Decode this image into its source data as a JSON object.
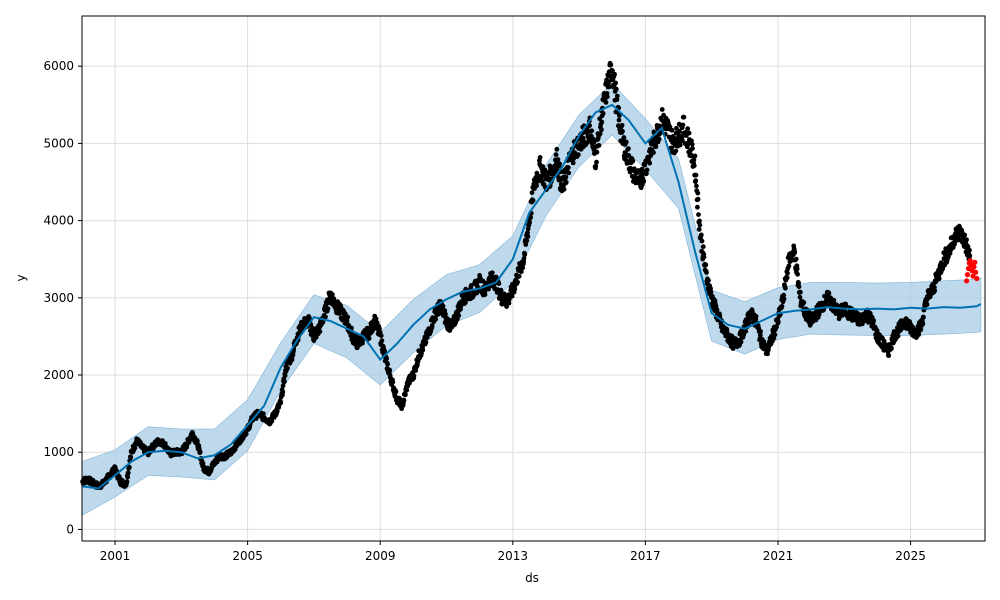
{
  "chart_data": {
    "type": "line",
    "title": "",
    "xlabel": "ds",
    "ylabel": "y",
    "x_ticks": [
      "2001",
      "2005",
      "2009",
      "2013",
      "2017",
      "2021",
      "2025"
    ],
    "y_ticks": [
      "0",
      "1000",
      "2000",
      "3000",
      "4000",
      "5000",
      "6000"
    ],
    "xlim": [
      "2000-01-03",
      "2027-04-01"
    ],
    "ylim": [
      -150,
      6650
    ],
    "grid": true,
    "legend": "none",
    "colors": {
      "observed": "#000000",
      "forecast": "#0072B2",
      "uncertainty": "#a8cce6",
      "recent": "#ff0000"
    },
    "series": [
      {
        "name": "",
        "role": "forecast-trend",
        "x": [
          "2000-01-01",
          "2000-07-01",
          "2001-01-01",
          "2001-07-01",
          "2002-01-01",
          "2002-07-01",
          "2003-01-01",
          "2003-07-01",
          "2004-01-01",
          "2004-07-01",
          "2005-01-01",
          "2005-07-01",
          "2006-01-01",
          "2006-07-01",
          "2007-01-01",
          "2007-07-01",
          "2008-01-01",
          "2008-07-01",
          "2009-01-01",
          "2009-07-01",
          "2010-01-01",
          "2010-07-01",
          "2011-01-01",
          "2011-07-01",
          "2012-01-01",
          "2012-07-01",
          "2013-01-01",
          "2013-07-01",
          "2014-01-01",
          "2014-07-01",
          "2015-01-01",
          "2015-07-01",
          "2016-01-01",
          "2016-07-01",
          "2017-01-01",
          "2017-07-01",
          "2018-01-01",
          "2018-07-01",
          "2019-01-01",
          "2019-07-01",
          "2020-01-01",
          "2020-07-01",
          "2021-01-01",
          "2021-07-01",
          "2022-01-01",
          "2022-07-01",
          "2023-01-01",
          "2023-07-01",
          "2024-01-01",
          "2024-07-01",
          "2025-01-01",
          "2025-07-01",
          "2026-01-01",
          "2026-07-01",
          "2027-01-01",
          "2027-02-15"
        ],
        "y": [
          560,
          530,
          700,
          880,
          1000,
          1020,
          1000,
          920,
          960,
          1100,
          1350,
          1600,
          2100,
          2450,
          2750,
          2700,
          2600,
          2500,
          2200,
          2400,
          2650,
          2850,
          2980,
          3080,
          3120,
          3200,
          3500,
          4100,
          4400,
          4700,
          5100,
          5400,
          5500,
          5300,
          5000,
          5200,
          4500,
          3600,
          2800,
          2650,
          2600,
          2700,
          2800,
          2830,
          2850,
          2880,
          2860,
          2850,
          2860,
          2850,
          2870,
          2860,
          2880,
          2870,
          2890,
          2920
        ]
      },
      {
        "name": "",
        "role": "uncertainty-upper",
        "x": [
          "2000-01-01",
          "2001-01-01",
          "2002-01-01",
          "2003-01-01",
          "2004-01-01",
          "2005-01-01",
          "2006-01-01",
          "2007-01-01",
          "2008-01-01",
          "2009-01-01",
          "2010-01-01",
          "2011-01-01",
          "2012-01-01",
          "2013-01-01",
          "2014-01-01",
          "2015-01-01",
          "2016-01-01",
          "2017-01-01",
          "2018-01-01",
          "2019-01-01",
          "2020-01-01",
          "2021-01-01",
          "2022-01-01",
          "2023-01-01",
          "2024-01-01",
          "2025-01-01",
          "2026-01-01",
          "2027-01-01",
          "2027-02-15"
        ],
        "y": [
          880,
          1030,
          1330,
          1300,
          1300,
          1680,
          2420,
          3040,
          2900,
          2550,
          2980,
          3300,
          3430,
          3800,
          4720,
          5370,
          5780,
          5320,
          4800,
          3100,
          2950,
          3130,
          3200,
          3200,
          3190,
          3200,
          3220,
          3240,
          3260
        ]
      },
      {
        "name": "",
        "role": "uncertainty-lower",
        "x": [
          "2000-01-01",
          "2001-01-01",
          "2002-01-01",
          "2003-01-01",
          "2004-01-01",
          "2005-01-01",
          "2006-01-01",
          "2007-01-01",
          "2008-01-01",
          "2009-01-01",
          "2010-01-01",
          "2011-01-01",
          "2012-01-01",
          "2013-01-01",
          "2014-01-01",
          "2015-01-01",
          "2016-01-01",
          "2017-01-01",
          "2018-01-01",
          "2019-01-01",
          "2020-01-01",
          "2021-01-01",
          "2022-01-01",
          "2023-01-01",
          "2024-01-01",
          "2025-01-01",
          "2026-01-01",
          "2027-01-01",
          "2027-02-15"
        ],
        "y": [
          180,
          420,
          700,
          680,
          640,
          1020,
          1800,
          2410,
          2220,
          1870,
          2290,
          2640,
          2810,
          3200,
          4060,
          4700,
          5110,
          4660,
          4160,
          2440,
          2270,
          2460,
          2530,
          2520,
          2510,
          2510,
          2530,
          2550,
          2560
        ]
      },
      {
        "name": "",
        "role": "observed",
        "x": [
          "2000-01-10",
          "2000-03-01",
          "2000-05-01",
          "2000-07-01",
          "2000-09-01",
          "2000-11-01",
          "2001-01-01",
          "2001-03-01",
          "2001-05-01",
          "2001-07-01",
          "2001-09-01",
          "2001-11-01",
          "2002-01-01",
          "2002-03-01",
          "2002-05-01",
          "2002-07-01",
          "2002-09-01",
          "2002-11-01",
          "2003-01-01",
          "2003-03-01",
          "2003-05-01",
          "2003-07-01",
          "2003-09-01",
          "2003-11-01",
          "2004-01-01",
          "2004-03-01",
          "2004-05-01",
          "2004-07-01",
          "2004-09-01",
          "2004-11-01",
          "2005-01-01",
          "2005-03-01",
          "2005-05-01",
          "2005-07-01",
          "2005-09-01",
          "2005-11-01",
          "2006-01-01",
          "2006-03-01",
          "2006-05-01",
          "2006-07-01",
          "2006-09-01",
          "2006-11-01",
          "2007-01-01",
          "2007-03-01",
          "2007-05-01",
          "2007-07-01",
          "2007-09-01",
          "2007-11-01",
          "2008-01-01",
          "2008-03-01",
          "2008-05-01",
          "2008-07-01",
          "2008-09-01",
          "2008-11-01",
          "2009-01-01",
          "2009-03-01",
          "2009-05-01",
          "2009-07-01",
          "2009-09-01",
          "2009-11-01",
          "2010-01-01",
          "2010-03-01",
          "2010-05-01",
          "2010-07-01",
          "2010-09-01",
          "2010-11-01",
          "2011-01-01",
          "2011-03-01",
          "2011-05-01",
          "2011-07-01",
          "2011-09-01",
          "2011-11-01",
          "2012-01-01",
          "2012-03-01",
          "2012-05-01",
          "2012-07-01",
          "2012-09-01",
          "2012-11-01",
          "2013-01-01",
          "2013-03-01",
          "2013-05-01",
          "2013-07-01",
          "2013-09-01",
          "2013-11-01",
          "2014-01-01",
          "2014-03-01",
          "2014-05-01",
          "2014-07-01",
          "2014-09-01",
          "2014-11-01",
          "2015-01-01",
          "2015-03-01",
          "2015-05-01",
          "2015-07-01",
          "2015-09-01",
          "2015-11-01",
          "2016-01-01",
          "2016-03-01",
          "2016-05-01",
          "2016-07-01",
          "2016-09-01",
          "2016-11-01",
          "2017-01-01",
          "2017-03-01",
          "2017-05-01",
          "2017-07-01",
          "2017-09-01",
          "2017-11-01",
          "2018-01-01",
          "2018-03-01",
          "2018-05-01",
          "2018-07-01",
          "2018-09-01",
          "2018-11-01",
          "2019-01-01",
          "2019-03-01",
          "2019-05-01",
          "2019-07-01",
          "2019-09-01",
          "2019-11-01",
          "2020-01-01",
          "2020-03-01",
          "2020-05-01",
          "2020-07-01",
          "2020-09-01",
          "2020-11-01",
          "2021-01-01",
          "2021-03-01",
          "2021-05-01",
          "2021-07-01",
          "2021-09-01",
          "2021-11-01",
          "2022-01-01",
          "2022-03-01",
          "2022-05-01",
          "2022-07-01",
          "2022-09-01",
          "2022-11-01",
          "2023-01-01",
          "2023-03-01",
          "2023-05-01",
          "2023-07-01",
          "2023-09-01",
          "2023-11-01",
          "2024-01-01",
          "2024-03-01",
          "2024-05-01",
          "2024-07-01",
          "2024-09-01",
          "2024-11-01",
          "2025-01-01",
          "2025-03-01",
          "2025-05-01",
          "2025-07-01",
          "2025-09-01",
          "2025-11-01",
          "2026-01-01",
          "2026-03-01",
          "2026-05-01",
          "2026-07-01",
          "2026-09-01",
          "2026-10-15"
        ],
        "y": [
          620,
          650,
          600,
          560,
          600,
          700,
          780,
          620,
          580,
          1000,
          1150,
          1050,
          1000,
          1080,
          1150,
          1100,
          980,
          1000,
          1000,
          1100,
          1250,
          1100,
          800,
          750,
          860,
          950,
          950,
          1000,
          1100,
          1200,
          1300,
          1450,
          1500,
          1450,
          1400,
          1500,
          1650,
          2100,
          2250,
          2500,
          2650,
          2700,
          2500,
          2600,
          2800,
          3050,
          2900,
          2800,
          2700,
          2500,
          2400,
          2500,
          2550,
          2700,
          2500,
          2200,
          1950,
          1700,
          1600,
          1900,
          2000,
          2250,
          2400,
          2600,
          2800,
          2900,
          2700,
          2600,
          2800,
          3000,
          3050,
          3100,
          3200,
          3100,
          3250,
          3200,
          3000,
          2950,
          3100,
          3300,
          3500,
          4000,
          4500,
          4700,
          4500,
          4600,
          4800,
          4400,
          4700,
          4900,
          5000,
          5100,
          5200,
          4800,
          5300,
          5700,
          6000,
          5400,
          5000,
          4800,
          4600,
          4500,
          4700,
          4900,
          5100,
          5300,
          5200,
          5000,
          5100,
          5200,
          5000,
          4700,
          3800,
          3300,
          3000,
          2800,
          2600,
          2500,
          2400,
          2450,
          2600,
          2800,
          2700,
          2450,
          2300,
          2500,
          2700,
          3000,
          3500,
          3600,
          3000,
          2800,
          2700,
          2800,
          2900,
          3000,
          2900,
          2800,
          2850,
          2800,
          2750,
          2700,
          2800,
          2700,
          2500,
          2400,
          2300,
          2500,
          2600,
          2700,
          2600,
          2550,
          2650,
          3000,
          3100,
          3300,
          3500,
          3600,
          3800,
          3850,
          3700,
          3500
        ]
      },
      {
        "name": "",
        "role": "recent",
        "x": [
          "2026-09-10",
          "2026-09-20",
          "2026-10-01",
          "2026-10-10",
          "2026-10-20",
          "2026-11-01",
          "2026-11-10",
          "2026-11-20",
          "2026-12-01",
          "2026-12-10",
          "2026-12-20",
          "2027-01-01"
        ],
        "y": [
          3220,
          3300,
          3380,
          3450,
          3480,
          3420,
          3350,
          3280,
          3400,
          3460,
          3330,
          3250
        ]
      }
    ]
  }
}
